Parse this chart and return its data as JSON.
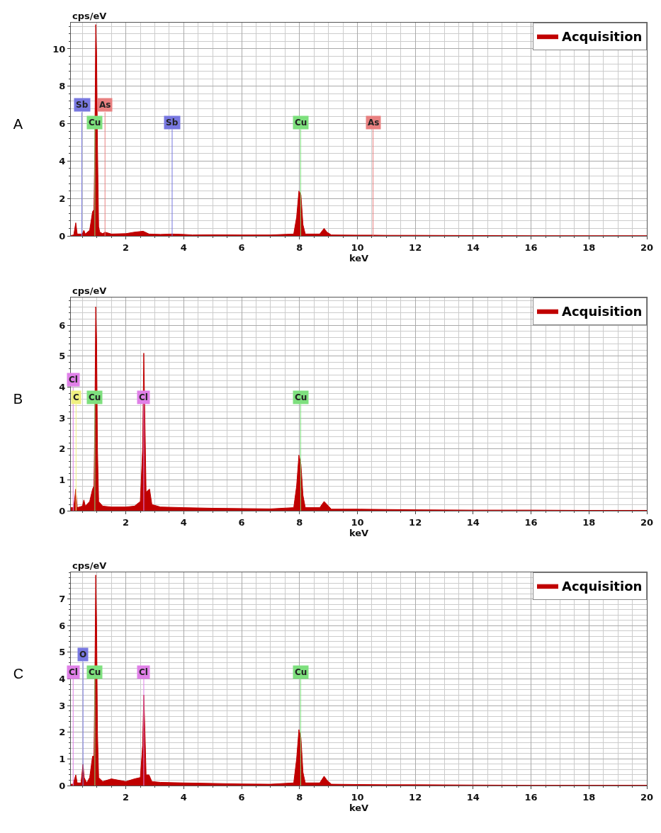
{
  "chart_data": [
    {
      "type": "area",
      "title": "A",
      "xlabel": "keV",
      "ylabel": "cps/eV",
      "xlim": [
        0.1,
        20
      ],
      "xticks": [
        2,
        4,
        6,
        8,
        10,
        12,
        14,
        16,
        18,
        20
      ],
      "ylim": [
        0,
        11.4
      ],
      "yticks": [
        0,
        2,
        4,
        6,
        8,
        10
      ],
      "grid": true,
      "legend": "top right",
      "series": [
        {
          "name": "Acquisition",
          "color": "#c00000",
          "x": [
            0.1,
            0.2,
            0.27,
            0.32,
            0.5,
            0.55,
            0.6,
            0.75,
            0.85,
            0.9,
            0.93,
            0.96,
            0.99,
            1.02,
            1.06,
            1.1,
            1.2,
            1.28,
            1.5,
            2.0,
            2.3,
            2.6,
            2.8,
            3.2,
            3.6,
            4.0,
            4.3,
            5,
            6,
            7,
            7.8,
            7.9,
            7.98,
            8.05,
            8.12,
            8.2,
            8.7,
            8.85,
            8.95,
            9.1,
            10,
            10.5,
            11,
            12,
            14,
            16,
            18,
            20
          ],
          "values": [
            0.02,
            0.05,
            0.7,
            0.1,
            0.1,
            0.3,
            0.1,
            0.3,
            1.3,
            1.4,
            5,
            11.3,
            9.7,
            4.8,
            0.5,
            0.2,
            0.12,
            0.2,
            0.1,
            0.12,
            0.2,
            0.25,
            0.1,
            0.08,
            0.1,
            0.08,
            0.05,
            0.06,
            0.05,
            0.05,
            0.1,
            1.0,
            2.4,
            2.2,
            0.6,
            0.1,
            0.1,
            0.4,
            0.2,
            0.05,
            0.04,
            0.04,
            0.03,
            0.03,
            0.02,
            0.01,
            0.01,
            0.01
          ]
        }
      ],
      "ref_lines": [
        {
          "axis": "x",
          "value": 0.93,
          "label": "Cu",
          "color": "#7ee07e"
        },
        {
          "axis": "x",
          "value": 0.48,
          "label": "Sb",
          "color": "#7878e0"
        },
        {
          "axis": "x",
          "value": 1.28,
          "label": "As",
          "color": "#e88080"
        },
        {
          "axis": "x",
          "value": 3.6,
          "label": "Sb",
          "color": "#7878e0"
        },
        {
          "axis": "x",
          "value": 8.04,
          "label": "Cu",
          "color": "#7ee07e"
        },
        {
          "axis": "x",
          "value": 10.54,
          "label": "As",
          "color": "#e88080"
        }
      ]
    },
    {
      "type": "area",
      "title": "B",
      "xlabel": "keV",
      "ylabel": "cps/eV",
      "xlim": [
        0.1,
        20
      ],
      "xticks": [
        2,
        4,
        6,
        8,
        10,
        12,
        14,
        16,
        18,
        20
      ],
      "ylim": [
        0,
        6.9
      ],
      "yticks": [
        0,
        1,
        2,
        3,
        4,
        5,
        6
      ],
      "grid": true,
      "legend": "top right",
      "series": [
        {
          "name": "Acquisition",
          "color": "#c00000",
          "x": [
            0.1,
            0.2,
            0.27,
            0.32,
            0.5,
            0.55,
            0.6,
            0.75,
            0.85,
            0.9,
            0.93,
            0.96,
            0.99,
            1.02,
            1.06,
            1.2,
            1.5,
            2.0,
            2.3,
            2.5,
            2.58,
            2.62,
            2.7,
            2.82,
            2.9,
            3.2,
            4,
            5,
            6,
            7,
            7.8,
            7.9,
            7.98,
            8.05,
            8.12,
            8.2,
            8.7,
            8.85,
            8.95,
            9.1,
            10,
            11,
            12,
            14,
            16,
            18,
            20
          ],
          "values": [
            0.1,
            0.1,
            0.7,
            0.1,
            0.15,
            0.35,
            0.15,
            0.3,
            0.7,
            0.8,
            3,
            6.6,
            5.5,
            2,
            0.3,
            0.15,
            0.12,
            0.12,
            0.15,
            0.3,
            2,
            5.1,
            0.6,
            0.7,
            0.2,
            0.12,
            0.1,
            0.08,
            0.07,
            0.06,
            0.1,
            0.8,
            1.8,
            1.5,
            0.5,
            0.1,
            0.1,
            0.3,
            0.2,
            0.05,
            0.05,
            0.04,
            0.03,
            0.02,
            0.02,
            0.01,
            0.01
          ]
        }
      ],
      "ref_lines": [
        {
          "axis": "x",
          "value": 0.93,
          "label": "Cu",
          "color": "#7ee07e"
        },
        {
          "axis": "x",
          "value": 0.28,
          "label": "C",
          "color": "#f0f080"
        },
        {
          "axis": "x",
          "value": 0.18,
          "label": "Cl",
          "color": "#e080e8"
        },
        {
          "axis": "x",
          "value": 2.62,
          "label": "Cl",
          "color": "#e080e8"
        },
        {
          "axis": "x",
          "value": 8.04,
          "label": "Cu",
          "color": "#7ee07e"
        }
      ]
    },
    {
      "type": "area",
      "title": "C",
      "xlabel": "keV",
      "ylabel": "cps/eV",
      "xlim": [
        0.1,
        20
      ],
      "xticks": [
        2,
        4,
        6,
        8,
        10,
        12,
        14,
        16,
        18,
        20
      ],
      "ylim": [
        0,
        8
      ],
      "yticks": [
        0,
        1,
        2,
        3,
        4,
        5,
        6,
        7
      ],
      "grid": true,
      "legend": "top right",
      "series": [
        {
          "name": "Acquisition",
          "color": "#c00000",
          "x": [
            0.1,
            0.18,
            0.27,
            0.32,
            0.45,
            0.52,
            0.56,
            0.65,
            0.75,
            0.85,
            0.9,
            0.93,
            0.96,
            0.99,
            1.02,
            1.06,
            1.2,
            1.5,
            2.0,
            2.3,
            2.5,
            2.58,
            2.62,
            2.66,
            2.7,
            2.8,
            2.9,
            3.2,
            4,
            5,
            6,
            7,
            7.8,
            7.9,
            7.98,
            8.05,
            8.12,
            8.2,
            8.7,
            8.85,
            8.95,
            9.1,
            10,
            11,
            12,
            14,
            16,
            18,
            20
          ],
          "values": [
            0.05,
            0.05,
            0.4,
            0.1,
            0.1,
            0.8,
            0.3,
            0.1,
            0.3,
            1.1,
            1.1,
            4,
            7.9,
            6,
            2,
            0.3,
            0.15,
            0.25,
            0.15,
            0.25,
            0.3,
            1.5,
            3.4,
            2.0,
            0.4,
            0.4,
            0.15,
            0.12,
            0.1,
            0.08,
            0.06,
            0.05,
            0.1,
            1.0,
            2.1,
            1.8,
            0.5,
            0.1,
            0.1,
            0.35,
            0.2,
            0.05,
            0.04,
            0.03,
            0.03,
            0.02,
            0.01,
            0.01,
            0.01
          ]
        }
      ],
      "ref_lines": [
        {
          "axis": "x",
          "value": 0.93,
          "label": "Cu",
          "color": "#7ee07e"
        },
        {
          "axis": "x",
          "value": 0.18,
          "label": "Cl",
          "color": "#e080e8"
        },
        {
          "axis": "x",
          "value": 0.52,
          "label": "O",
          "color": "#7878e0"
        },
        {
          "axis": "x",
          "value": 2.62,
          "label": "Cl",
          "color": "#e080e8"
        },
        {
          "axis": "x",
          "value": 8.04,
          "label": "Cu",
          "color": "#7ee07e"
        }
      ]
    }
  ]
}
